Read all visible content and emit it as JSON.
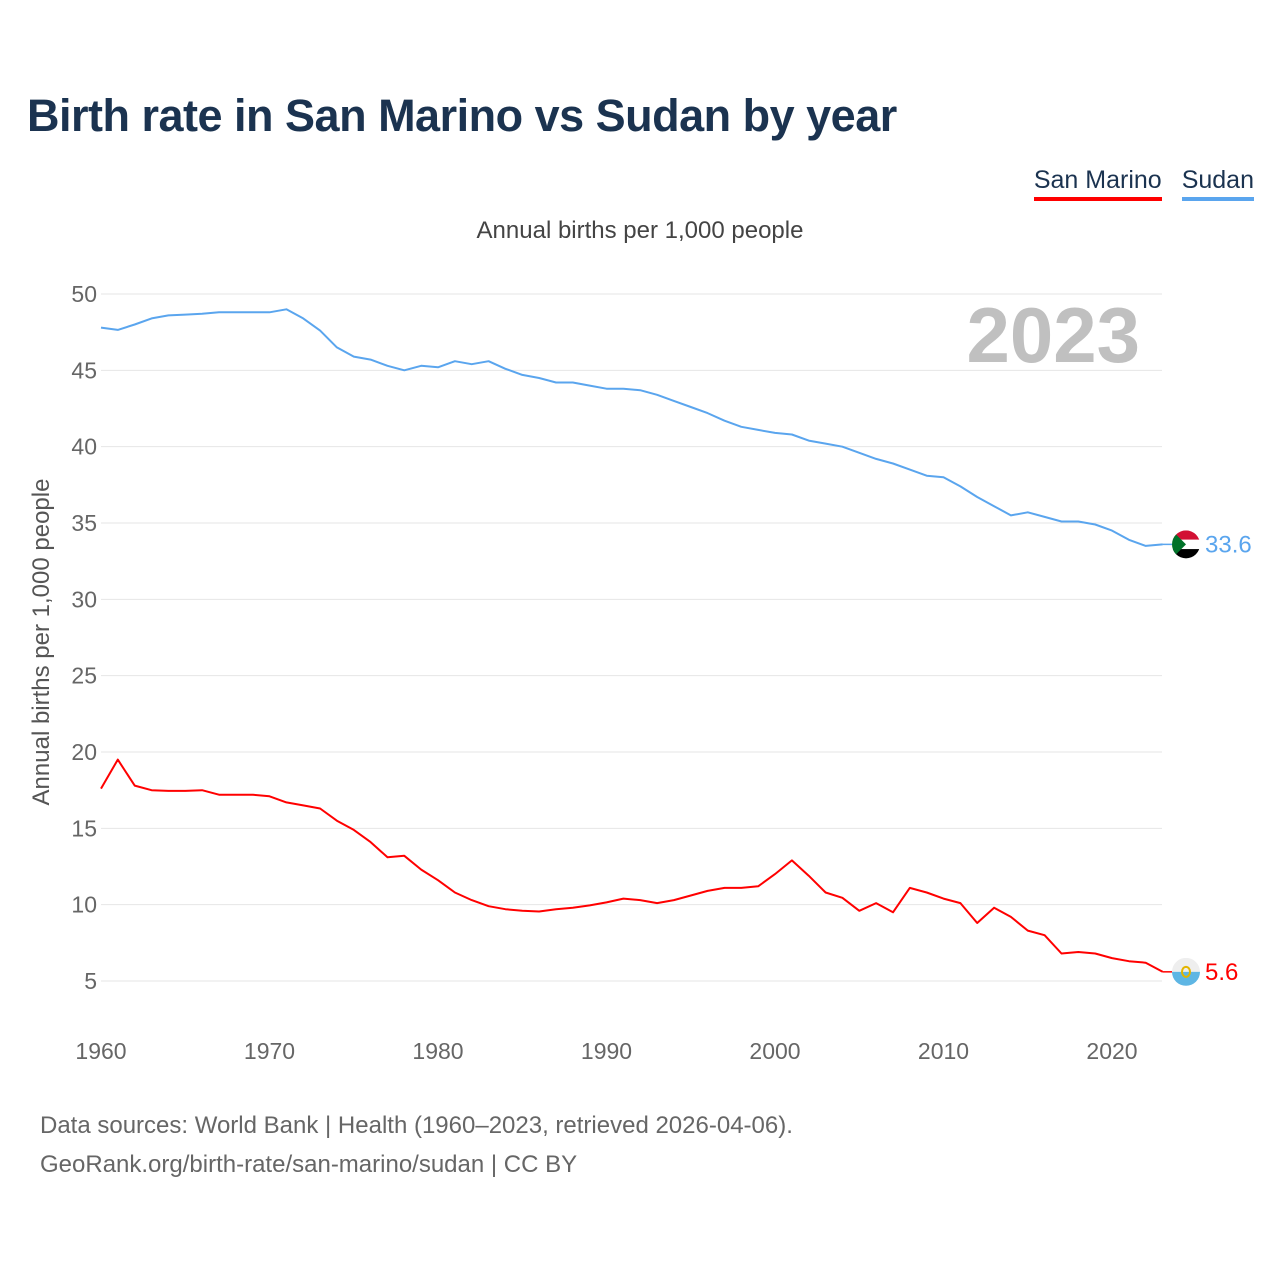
{
  "title": "Birth rate in San Marino vs Sudan by year",
  "legend": [
    {
      "label": "San Marino",
      "color": "#ff0000"
    },
    {
      "label": "Sudan",
      "color": "#5aa5ee"
    }
  ],
  "footer": {
    "line1": "Data sources: World Bank | Health (1960–2023, retrieved 2026-04-06).",
    "line2": "GeoRank.org/birth-rate/san-marino/sudan | CC BY"
  },
  "chart_data": {
    "type": "line",
    "title": "Birth rate in San Marino vs Sudan by year",
    "subtitle": "Annual births per 1,000 people",
    "xlabel": "",
    "ylabel": "Annual births per 1,000 people",
    "year_watermark": "2023",
    "xlim": [
      1960,
      2023
    ],
    "ylim": [
      5,
      50
    ],
    "xticks": [
      1960,
      1970,
      1980,
      1990,
      2000,
      2010,
      2020
    ],
    "yticks": [
      5,
      10,
      15,
      20,
      25,
      30,
      35,
      40,
      45,
      50
    ],
    "grid": true,
    "legend_position": "top-right",
    "x": [
      1960,
      1961,
      1962,
      1963,
      1964,
      1965,
      1966,
      1967,
      1968,
      1969,
      1970,
      1971,
      1972,
      1973,
      1974,
      1975,
      1976,
      1977,
      1978,
      1979,
      1980,
      1981,
      1982,
      1983,
      1984,
      1985,
      1986,
      1987,
      1988,
      1989,
      1990,
      1991,
      1992,
      1993,
      1994,
      1995,
      1996,
      1997,
      1998,
      1999,
      2000,
      2001,
      2002,
      2003,
      2004,
      2005,
      2006,
      2007,
      2008,
      2009,
      2010,
      2011,
      2012,
      2013,
      2014,
      2015,
      2016,
      2017,
      2018,
      2019,
      2020,
      2021,
      2022,
      2023
    ],
    "series": [
      {
        "name": "San Marino",
        "color": "#ff0000",
        "end_label": "5.6",
        "flag": "san-marino-flag-icon",
        "values": [
          17.6,
          19.5,
          17.8,
          17.5,
          17.45,
          17.45,
          17.5,
          17.2,
          17.2,
          17.2,
          17.1,
          16.7,
          16.5,
          16.3,
          15.5,
          14.9,
          14.1,
          13.1,
          13.2,
          12.3,
          11.6,
          10.8,
          10.3,
          9.9,
          9.7,
          9.6,
          9.55,
          9.7,
          9.8,
          9.95,
          10.15,
          10.4,
          10.3,
          10.1,
          10.3,
          10.6,
          10.9,
          11.1,
          11.1,
          11.2,
          12.0,
          12.9,
          11.9,
          10.8,
          10.45,
          9.6,
          10.1,
          9.5,
          11.1,
          10.8,
          10.4,
          10.1,
          8.8,
          9.8,
          9.2,
          8.3,
          8.0,
          6.8,
          6.9,
          6.8,
          6.5,
          6.3,
          6.2,
          5.6
        ]
      },
      {
        "name": "Sudan",
        "color": "#5aa5ee",
        "end_label": "33.6",
        "flag": "sudan-flag-icon",
        "values": [
          47.8,
          47.65,
          48.0,
          48.4,
          48.6,
          48.65,
          48.7,
          48.8,
          48.8,
          48.8,
          48.8,
          49.0,
          48.4,
          47.6,
          46.5,
          45.9,
          45.7,
          45.3,
          45.0,
          45.3,
          45.2,
          45.6,
          45.4,
          45.6,
          45.1,
          44.7,
          44.5,
          44.2,
          44.2,
          44.0,
          43.8,
          43.8,
          43.7,
          43.4,
          43.0,
          42.6,
          42.2,
          41.7,
          41.3,
          41.1,
          40.9,
          40.8,
          40.4,
          40.2,
          40.0,
          39.6,
          39.2,
          38.9,
          38.5,
          38.1,
          38.0,
          37.4,
          36.7,
          36.1,
          35.5,
          35.7,
          35.4,
          35.1,
          35.1,
          34.9,
          34.5,
          33.9,
          33.5,
          33.6
        ]
      }
    ]
  }
}
